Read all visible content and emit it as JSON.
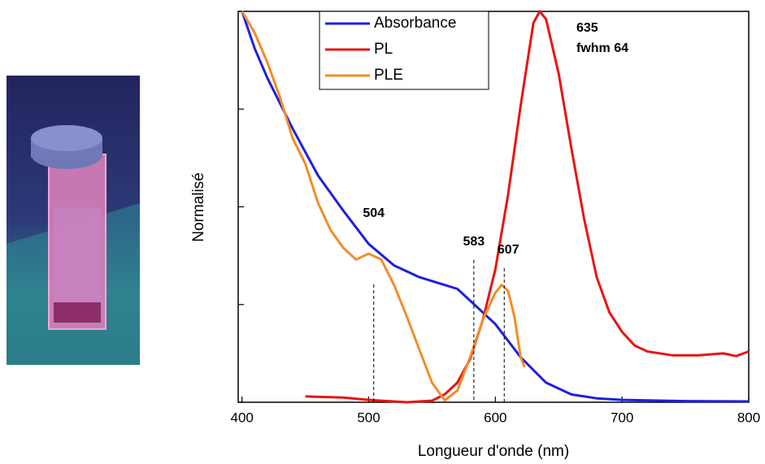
{
  "chart_data": {
    "type": "line",
    "x_label": "Longueur d'onde (nm)",
    "y_label": "Normalisé",
    "xlim": [
      397,
      800
    ],
    "ylim": [
      0,
      1
    ],
    "xticks": [
      400,
      500,
      600,
      700,
      800
    ],
    "yticks": [
      0,
      0.25,
      0.5,
      0.75,
      1
    ],
    "series": [
      {
        "name": "Absorbance",
        "color": "#1f1fe0",
        "x": [
          400,
          410,
          420,
          440,
          460,
          480,
          500,
          520,
          540,
          560,
          570,
          580,
          600,
          620,
          640,
          660,
          680,
          700,
          750,
          800
        ],
        "values": [
          1.0,
          0.905,
          0.83,
          0.7,
          0.58,
          0.49,
          0.405,
          0.35,
          0.32,
          0.3,
          0.29,
          0.26,
          0.2,
          0.115,
          0.05,
          0.02,
          0.01,
          0.006,
          0.003,
          0.002
        ]
      },
      {
        "name": "PL",
        "color": "#e81414",
        "x": [
          450,
          480,
          500,
          530,
          550,
          560,
          570,
          580,
          590,
          600,
          610,
          620,
          630,
          635,
          640,
          650,
          660,
          670,
          680,
          690,
          700,
          710,
          720,
          740,
          760,
          780,
          790,
          800
        ],
        "values": [
          0.015,
          0.012,
          0.006,
          0.0,
          0.004,
          0.02,
          0.05,
          0.11,
          0.21,
          0.34,
          0.53,
          0.76,
          0.97,
          1.0,
          0.98,
          0.84,
          0.65,
          0.47,
          0.32,
          0.23,
          0.18,
          0.145,
          0.13,
          0.12,
          0.12,
          0.125,
          0.118,
          0.13
        ]
      },
      {
        "name": "PLE",
        "color": "#f28c28",
        "x": [
          400,
          410,
          420,
          430,
          440,
          450,
          460,
          470,
          480,
          490,
          500,
          510,
          520,
          530,
          540,
          550,
          560,
          570,
          580,
          590,
          600,
          605,
          610,
          615,
          620,
          623
        ],
        "values": [
          1.0,
          0.945,
          0.87,
          0.78,
          0.675,
          0.61,
          0.51,
          0.44,
          0.395,
          0.365,
          0.38,
          0.365,
          0.3,
          0.22,
          0.135,
          0.05,
          0.005,
          0.03,
          0.115,
          0.21,
          0.28,
          0.3,
          0.285,
          0.22,
          0.115,
          0.09
        ]
      }
    ],
    "annotations": [
      {
        "text": "504",
        "x": 504
      },
      {
        "text": "583",
        "x": 583
      },
      {
        "text": "607",
        "x": 607
      },
      {
        "text": "635",
        "x": 635
      },
      {
        "text": "fwhm 64"
      }
    ]
  }
}
